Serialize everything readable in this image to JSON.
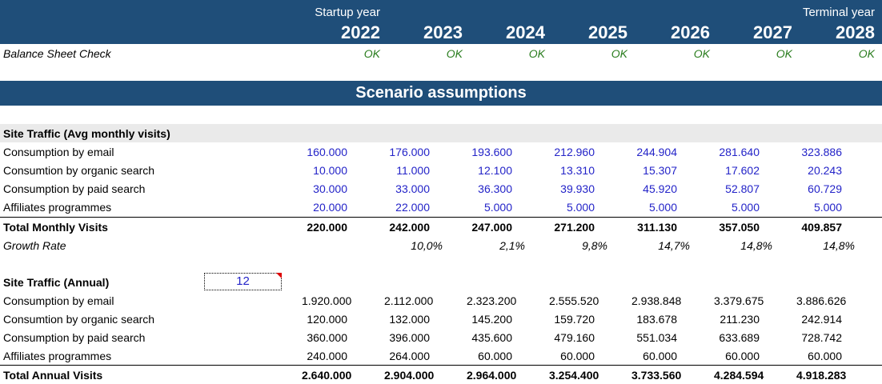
{
  "header": {
    "startup_label": "Startup year",
    "terminal_label": "Terminal year",
    "years": [
      "2022",
      "2023",
      "2024",
      "2025",
      "2026",
      "2027",
      "2028"
    ]
  },
  "balance_check": {
    "label": "Balance Sheet Check",
    "values": [
      "OK",
      "OK",
      "OK",
      "OK",
      "OK",
      "OK",
      "OK"
    ]
  },
  "scenario_title": "Scenario assumptions",
  "monthly": {
    "title": "Site Traffic (Avg monthly visits)",
    "rows": [
      {
        "label": "Consumption by email",
        "values": [
          "160.000",
          "176.000",
          "193.600",
          "212.960",
          "244.904",
          "281.640",
          "323.886"
        ]
      },
      {
        "label": "Consumtion by organic search",
        "values": [
          "10.000",
          "11.000",
          "12.100",
          "13.310",
          "15.307",
          "17.602",
          "20.243"
        ]
      },
      {
        "label": "Consumption by paid search",
        "values": [
          "30.000",
          "33.000",
          "36.300",
          "39.930",
          "45.920",
          "52.807",
          "60.729"
        ]
      },
      {
        "label": "Affiliates programmes",
        "values": [
          "20.000",
          "22.000",
          "5.000",
          "5.000",
          "5.000",
          "5.000",
          "5.000"
        ]
      }
    ],
    "total": {
      "label": "Total Monthly Visits",
      "values": [
        "220.000",
        "242.000",
        "247.000",
        "271.200",
        "311.130",
        "357.050",
        "409.857"
      ]
    },
    "growth": {
      "label": "Growth Rate",
      "values": [
        "",
        "10,0%",
        "2,1%",
        "9,8%",
        "14,7%",
        "14,8%",
        "14,8%"
      ]
    }
  },
  "annual": {
    "title": "Site Traffic (Annual)",
    "months_input": "12",
    "rows": [
      {
        "label": "Consumption by email",
        "values": [
          "1.920.000",
          "2.112.000",
          "2.323.200",
          "2.555.520",
          "2.938.848",
          "3.379.675",
          "3.886.626"
        ]
      },
      {
        "label": "Consumtion by organic search",
        "values": [
          "120.000",
          "132.000",
          "145.200",
          "159.720",
          "183.678",
          "211.230",
          "242.914"
        ]
      },
      {
        "label": "Consumption by paid search",
        "values": [
          "360.000",
          "396.000",
          "435.600",
          "479.160",
          "551.034",
          "633.689",
          "728.742"
        ]
      },
      {
        "label": "Affiliates programmes",
        "values": [
          "240.000",
          "264.000",
          "60.000",
          "60.000",
          "60.000",
          "60.000",
          "60.000"
        ]
      }
    ],
    "total": {
      "label": "Total Annual Visits",
      "values": [
        "2.640.000",
        "2.904.000",
        "2.964.000",
        "3.254.400",
        "3.733.560",
        "4.284.594",
        "4.918.283"
      ]
    }
  }
}
